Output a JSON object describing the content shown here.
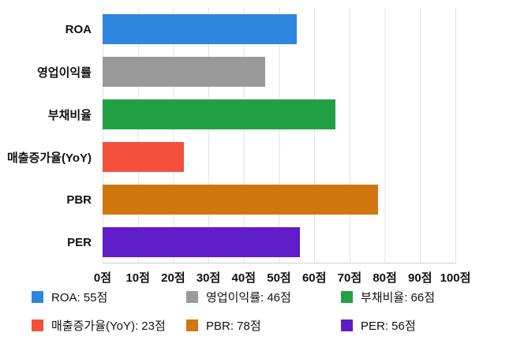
{
  "chart_data": {
    "type": "bar",
    "orientation": "horizontal",
    "title": "",
    "xlabel": "",
    "ylabel": "",
    "categories": [
      "ROA",
      "영업이익률",
      "부채비율",
      "매출증가율(YoY)",
      "PBR",
      "PER"
    ],
    "values": [
      55,
      46,
      66,
      23,
      78,
      56
    ],
    "bar_colors": [
      "#2E86DE",
      "#9A9A9A",
      "#22A045",
      "#F4513D",
      "#D1770F",
      "#5E1DC8"
    ],
    "value_unit": "점",
    "xlim": [
      0,
      100
    ],
    "x_tick_step": 10,
    "x_tick_labels": [
      "0점",
      "10점",
      "20점",
      "30점",
      "40점",
      "50점",
      "60점",
      "70점",
      "80점",
      "90점",
      "100점"
    ],
    "grid": true,
    "gridline_color": "#e1e1e1",
    "legend_position": "bottom",
    "legend_items": [
      {
        "label": "ROA: 55점",
        "color": "#2E86DE"
      },
      {
        "label": "영업이익률: 46점",
        "color": "#9A9A9A"
      },
      {
        "label": "부채비율: 66점",
        "color": "#22A045"
      },
      {
        "label": "매출증가율(YoY): 23점",
        "color": "#F4513D"
      },
      {
        "label": "PBR: 78점",
        "color": "#D1770F"
      },
      {
        "label": "PER: 56점",
        "color": "#5E1DC8"
      }
    ]
  }
}
